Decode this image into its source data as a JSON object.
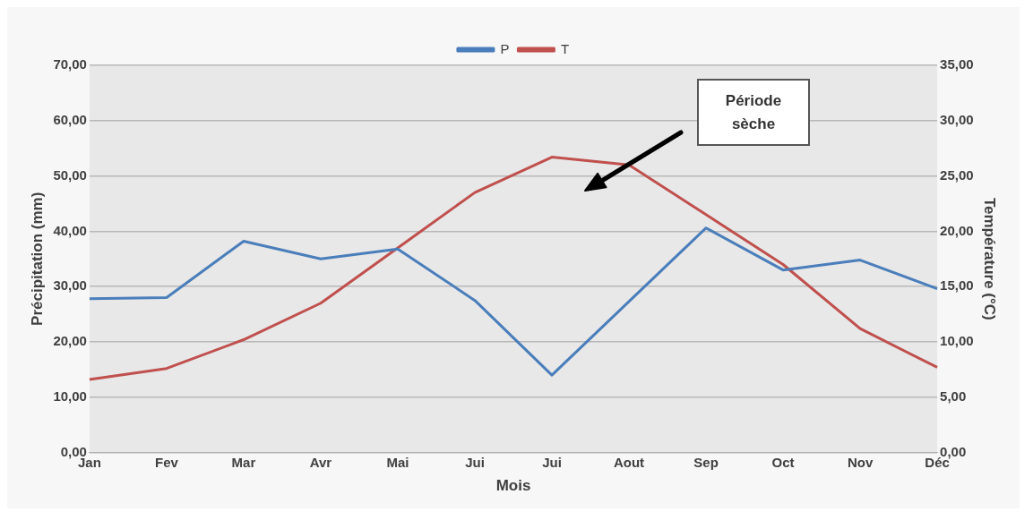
{
  "chart_data": {
    "type": "line",
    "categories": [
      "Jan",
      "Fev",
      "Mar",
      "Avr",
      "Mai",
      "Jui",
      "Jui",
      "Aout",
      "Sep",
      "Oct",
      "Nov",
      "Déc"
    ],
    "series": [
      {
        "name": "P",
        "color": "#4a7ebb",
        "values": [
          27.8,
          28,
          38.2,
          35,
          36.8,
          27.5,
          14,
          27.3,
          40.6,
          33,
          34.8,
          29.6
        ]
      },
      {
        "name": "T",
        "color": "#c0504d",
        "axis": "y2",
        "values": [
          6.6,
          7.6,
          10.2,
          13.5,
          18.5,
          23.5,
          26.7,
          26,
          21.5,
          17,
          11.2,
          7.7
        ]
      }
    ],
    "xlabel": "Mois",
    "ylabel": "Précipitation (mm)",
    "y2label": "Température (°C)",
    "ylim": [
      0,
      70
    ],
    "yticks": [
      {
        "value": 0,
        "label": "0,00"
      },
      {
        "value": 10,
        "label": "10,00"
      },
      {
        "value": 20,
        "label": "20,00"
      },
      {
        "value": 30,
        "label": "30,00"
      },
      {
        "value": 40,
        "label": "40,00"
      },
      {
        "value": 50,
        "label": "50,00"
      },
      {
        "value": 60,
        "label": "60,00"
      },
      {
        "value": 70,
        "label": "70,00"
      }
    ],
    "y2lim": [
      0,
      35
    ],
    "y2ticks": [
      {
        "value": 0,
        "label": "0,00"
      },
      {
        "value": 5,
        "label": "5,00"
      },
      {
        "value": 10,
        "label": "10,00"
      },
      {
        "value": 15,
        "label": "15,00"
      },
      {
        "value": 20,
        "label": "20,00"
      },
      {
        "value": 25,
        "label": "25,00"
      },
      {
        "value": 30,
        "label": "30,00"
      },
      {
        "value": 35,
        "label": "35,00"
      }
    ],
    "grid": "y",
    "legend": "top",
    "marker": "none",
    "line_style": "solid",
    "annotations": [
      "Période sèche"
    ]
  }
}
